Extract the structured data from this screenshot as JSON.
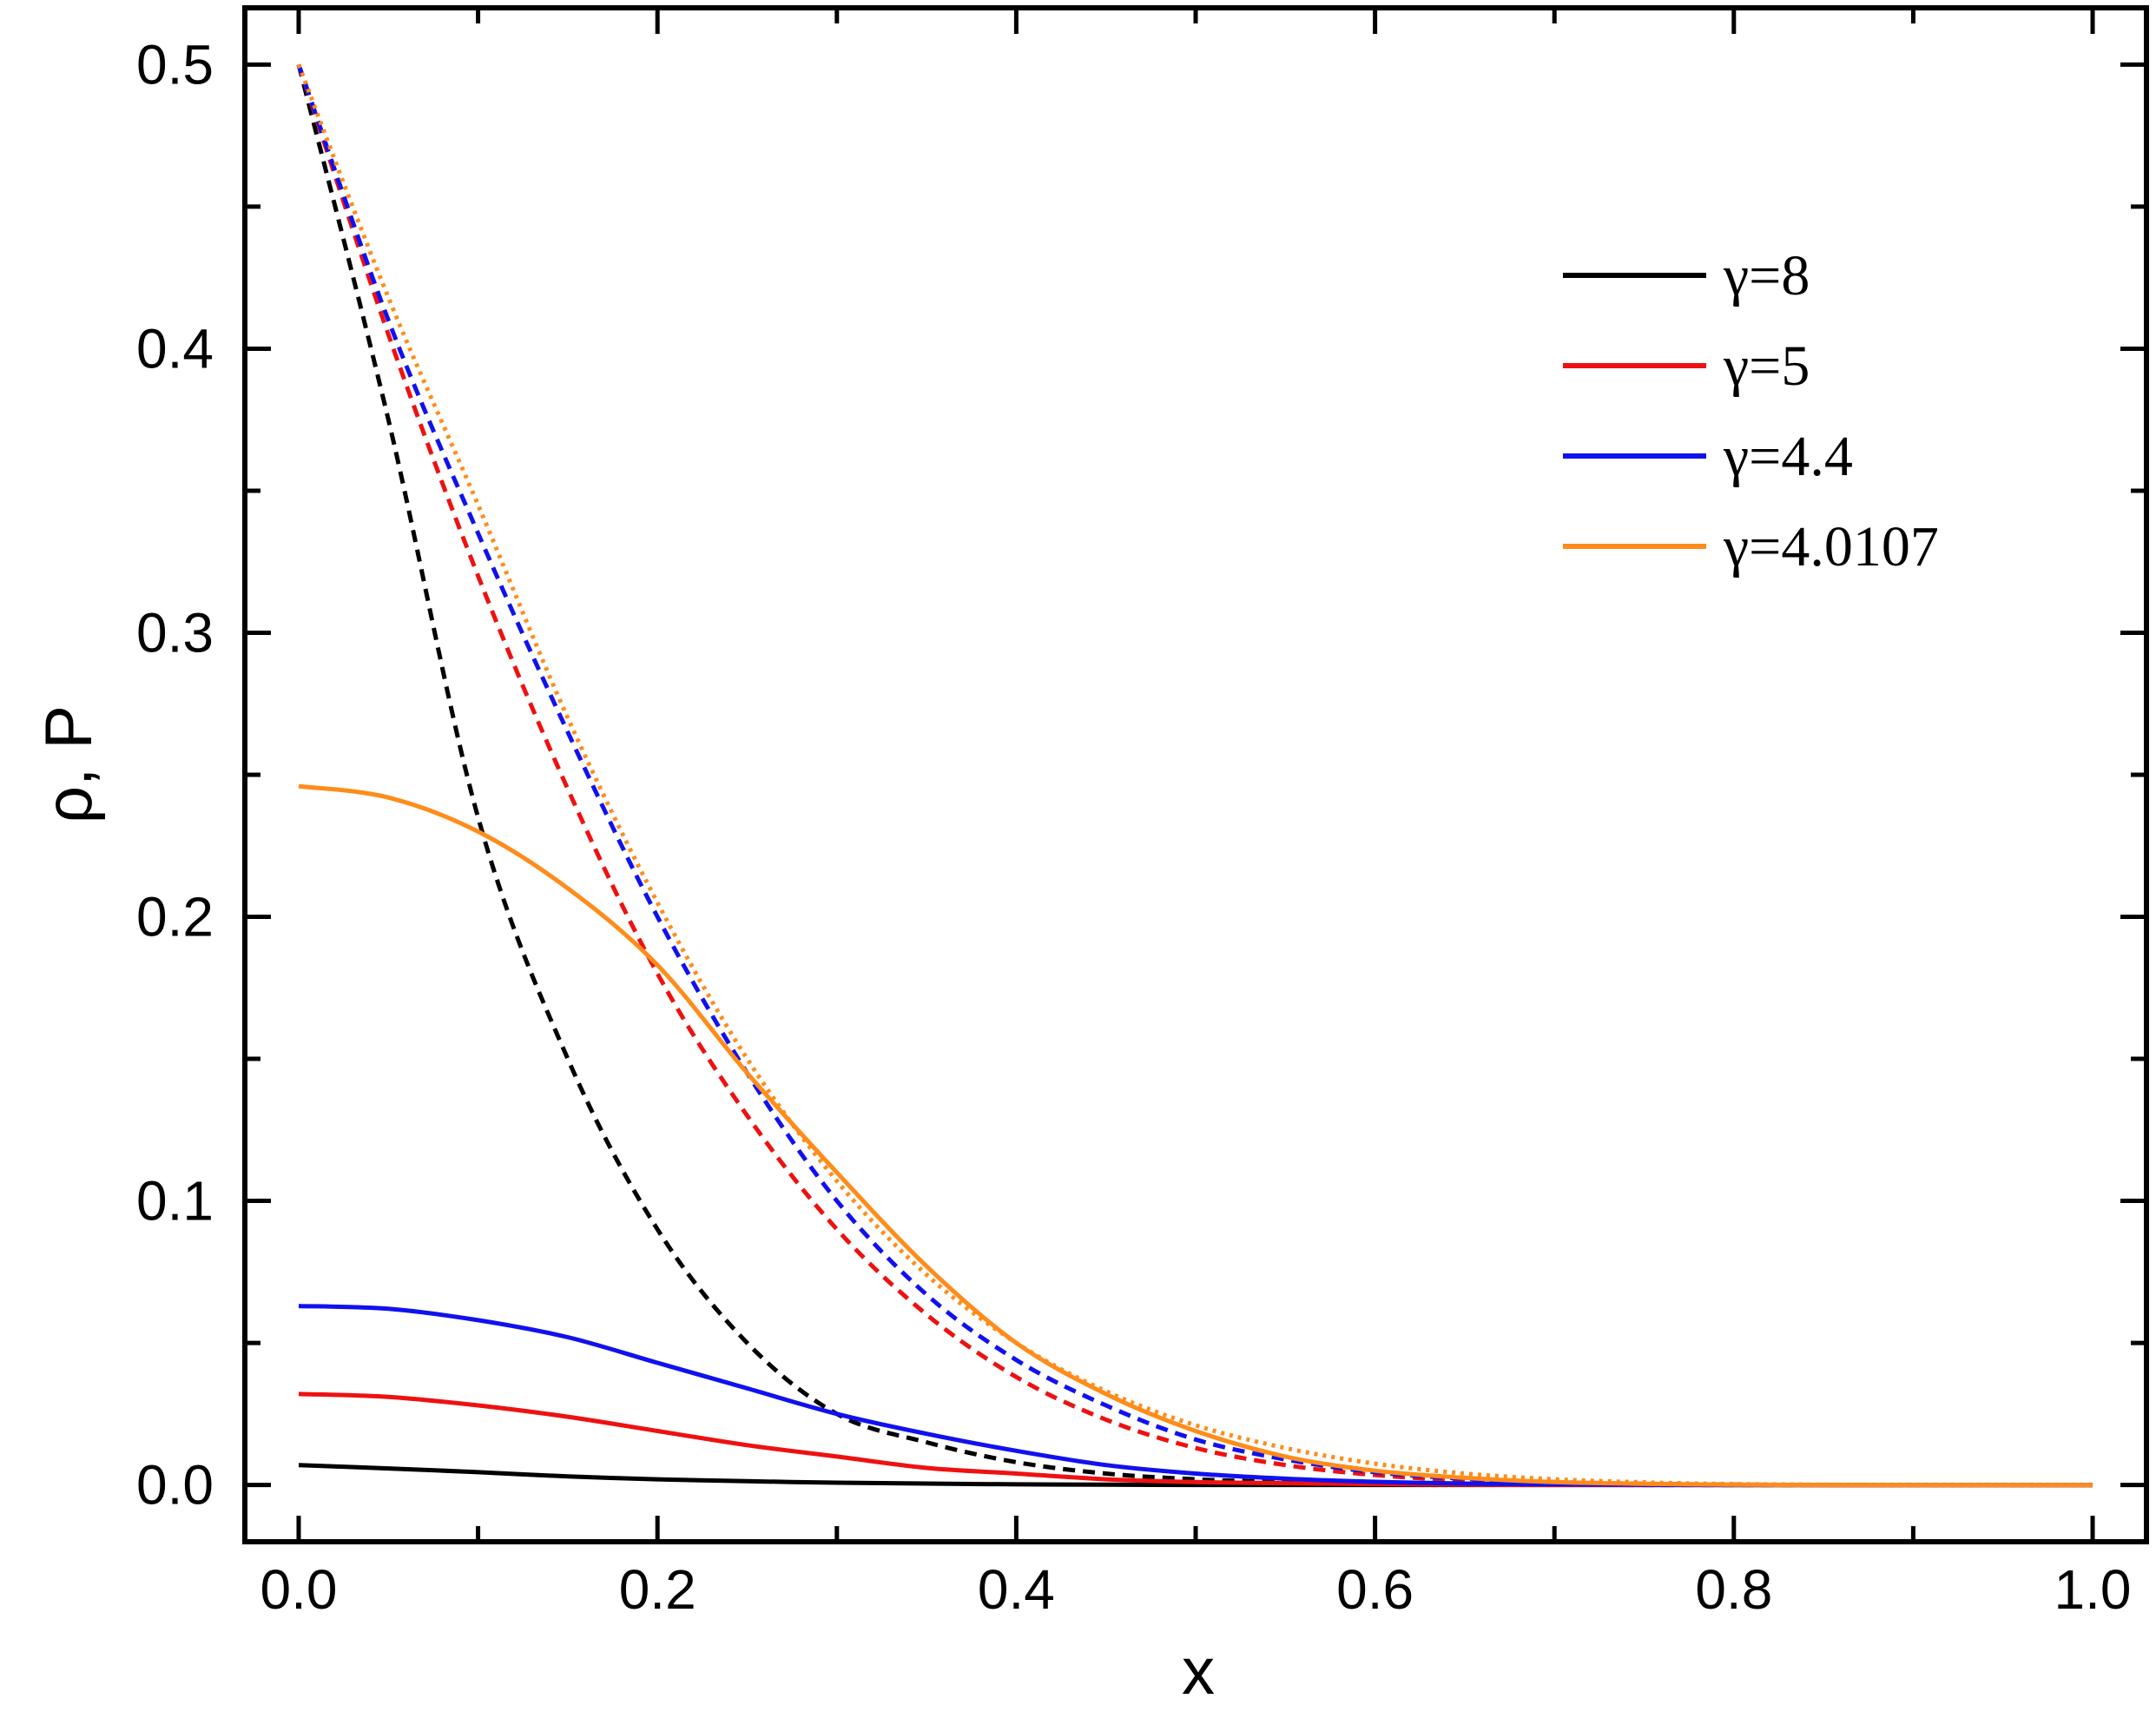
{
  "chart_data": {
    "type": "line",
    "xlabel": "x",
    "ylabel": "ρ, P",
    "xlim": [
      -0.03,
      1.03
    ],
    "ylim": [
      -0.02,
      0.52
    ],
    "x_ticks": [
      "0.0",
      "0.2",
      "0.4",
      "0.6",
      "0.8",
      "1.0"
    ],
    "y_ticks": [
      "0.0",
      "0.1",
      "0.2",
      "0.3",
      "0.4",
      "0.5"
    ],
    "grid": false,
    "legend_position": "top-right",
    "x": [
      0.0,
      0.05,
      0.1,
      0.15,
      0.2,
      0.25,
      0.3,
      0.35,
      0.4,
      0.45,
      0.5,
      0.55,
      0.6,
      0.65,
      0.7,
      0.75,
      0.8,
      0.85,
      0.9,
      0.95,
      1.0
    ],
    "series": [
      {
        "name": "γ=8",
        "color": "#000000",
        "style": "solid",
        "values": [
          0.007,
          0.0058,
          0.0045,
          0.003,
          0.002,
          0.0013,
          0.0008,
          0.0005,
          0.0002,
          0.0001,
          0.0,
          0.0,
          0.0,
          0.0,
          0.0,
          0.0,
          0.0,
          0.0,
          0.0,
          0.0,
          0.0
        ]
      },
      {
        "color": "#000000",
        "style": "dashed",
        "values": [
          0.5,
          0.375,
          0.235,
          0.15,
          0.09,
          0.05,
          0.025,
          0.015,
          0.008,
          0.004,
          0.002,
          0.001,
          0.0005,
          0.0002,
          0.0001,
          0.0,
          0.0,
          0.0,
          0.0,
          0.0,
          0.0
        ]
      },
      {
        "name": "γ=5",
        "color": "#ee1111",
        "style": "solid",
        "values": [
          0.032,
          0.031,
          0.028,
          0.024,
          0.019,
          0.014,
          0.01,
          0.006,
          0.004,
          0.002,
          0.001,
          0.0006,
          0.0003,
          0.0001,
          0.0,
          0.0,
          0.0,
          0.0,
          0.0,
          0.0,
          0.0
        ]
      },
      {
        "color": "#ee1111",
        "style": "dashed",
        "values": [
          0.5,
          0.405,
          0.32,
          0.245,
          0.18,
          0.13,
          0.09,
          0.06,
          0.038,
          0.023,
          0.013,
          0.007,
          0.0035,
          0.0016,
          0.0007,
          0.0003,
          0.0001,
          0.0,
          0.0,
          0.0,
          0.0
        ]
      },
      {
        "name": "γ=4.4",
        "color": "#1111ee",
        "style": "solid",
        "values": [
          0.063,
          0.062,
          0.058,
          0.052,
          0.043,
          0.034,
          0.025,
          0.018,
          0.012,
          0.007,
          0.004,
          0.0022,
          0.0011,
          0.0005,
          0.0002,
          0.0001,
          0.0,
          0.0,
          0.0,
          0.0,
          0.0
        ]
      },
      {
        "color": "#1111ee",
        "style": "dashed",
        "values": [
          0.5,
          0.41,
          0.335,
          0.265,
          0.2,
          0.145,
          0.1,
          0.067,
          0.044,
          0.028,
          0.016,
          0.009,
          0.0045,
          0.0022,
          0.001,
          0.0004,
          0.0001,
          0.0,
          0.0,
          0.0,
          0.0
        ]
      },
      {
        "name": "γ=4.0107",
        "color": "#ff8c1a",
        "style": "solid",
        "values": [
          0.246,
          0.242,
          0.23,
          0.21,
          0.183,
          0.145,
          0.11,
          0.077,
          0.05,
          0.032,
          0.019,
          0.01,
          0.005,
          0.0025,
          0.001,
          0.0004,
          0.0001,
          0.0,
          0.0,
          0.0,
          0.0
        ]
      },
      {
        "color": "#ff8c1a",
        "style": "dotted",
        "values": [
          0.5,
          0.418,
          0.345,
          0.27,
          0.205,
          0.15,
          0.107,
          0.074,
          0.05,
          0.033,
          0.021,
          0.013,
          0.0075,
          0.004,
          0.002,
          0.0009,
          0.0003,
          0.0001,
          0.0,
          0.0,
          0.0
        ]
      }
    ]
  }
}
